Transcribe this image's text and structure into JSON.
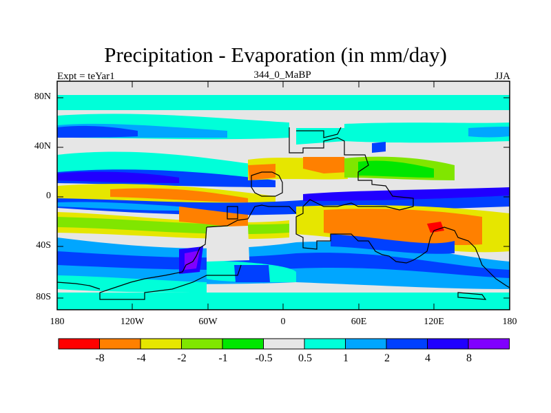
{
  "title": "Precipitation - Evaporation (in mm/day)",
  "left_label": "Expt = teYar1",
  "center_label": "344_0_MaBP",
  "right_label": "JJA",
  "y_ticks": [
    "80N",
    "40N",
    "0",
    "40S",
    "80S"
  ],
  "x_ticks": [
    "180",
    "120W",
    "60W",
    "0",
    "60E",
    "120E",
    "180"
  ],
  "colorbar": {
    "labels": [
      "-8",
      "-4",
      "-2",
      "-1",
      "-0.5",
      "0.5",
      "1",
      "2",
      "4",
      "8"
    ],
    "colors": [
      "#ff0000",
      "#ff8000",
      "#e6e600",
      "#80e600",
      "#00e600",
      "#e6e6e6",
      "#00ffd9",
      "#00a6ff",
      "#0040ff",
      "#2000ff",
      "#8000ff"
    ]
  }
}
